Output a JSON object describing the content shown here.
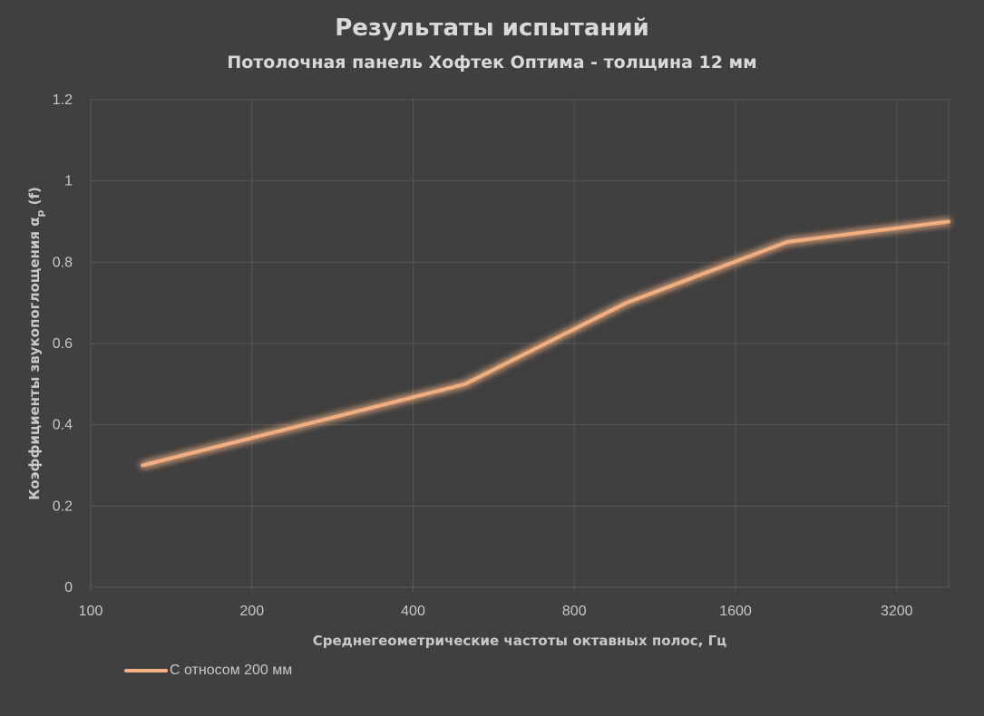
{
  "chart_data": {
    "type": "line",
    "title": "Результаты испытаний",
    "subtitle": "Потолочная панель Хофтек Оптима - толщина 12 мм",
    "xlabel": "Среднегеометрические частоты октавных полос, Гц",
    "ylabel_main": "Коэффициенты звукопоглощения α",
    "ylabel_sub": "p",
    "ylabel_suffix": " (f)",
    "x_scale": "log2",
    "xlim": [
      100,
      4000
    ],
    "x_ticks": [
      100,
      200,
      400,
      800,
      1600,
      3200
    ],
    "x_tick_labels": [
      "100",
      "200",
      "400",
      "800",
      "1600",
      "3200"
    ],
    "ylim": [
      0,
      1.2
    ],
    "y_ticks": [
      0,
      0.2,
      0.4,
      0.6,
      0.8,
      1,
      1.2
    ],
    "y_tick_labels": [
      "0",
      "0.2",
      "0.4",
      "0.6",
      "0.8",
      "1",
      "1.2"
    ],
    "grid": true,
    "legend_position": "bottom-left",
    "series": [
      {
        "name": "С относом 200 мм",
        "color": "#f4b183",
        "x": [
          125,
          250,
          500,
          1000,
          2000,
          4000
        ],
        "values": [
          0.3,
          0.4,
          0.5,
          0.7,
          0.85,
          0.9
        ]
      }
    ]
  },
  "colors": {
    "background": "#404040",
    "grid": "#595959",
    "text": "#d9d9d9"
  }
}
